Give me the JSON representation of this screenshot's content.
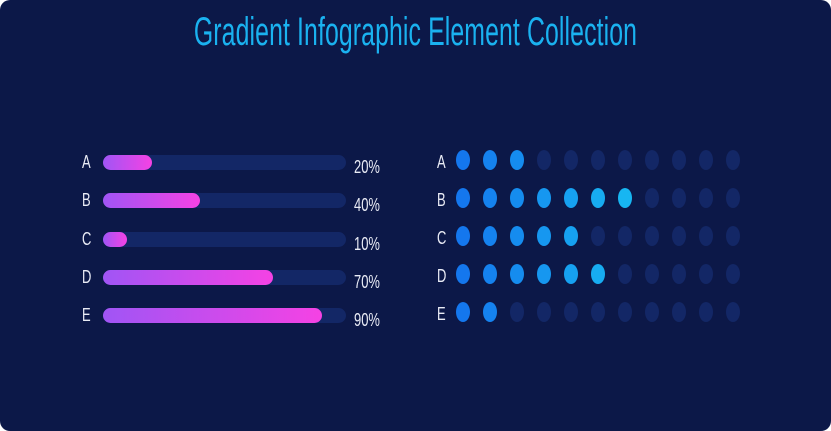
{
  "title": "Gradient Infographic Element Collection",
  "colors": {
    "background": "#0c1848",
    "title": "#1ab2f0",
    "bar_track": "#132766",
    "bar_gradient_start": "#a055f5",
    "bar_gradient_end": "#f542e4",
    "dot_active_start": "#1477ee",
    "dot_active_end": "#17b6f2",
    "dot_inactive": "#132766",
    "text": "#e9ebf5"
  },
  "chart_data": [
    {
      "type": "bar",
      "orientation": "horizontal",
      "categories": [
        "A",
        "B",
        "C",
        "D",
        "E"
      ],
      "values": [
        20,
        40,
        10,
        70,
        90
      ],
      "value_labels": [
        "20%",
        "40%",
        "10%",
        "70%",
        "90%"
      ],
      "xlim": [
        0,
        100
      ]
    },
    {
      "type": "dot-matrix",
      "categories": [
        "A",
        "B",
        "C",
        "D",
        "E"
      ],
      "values": [
        3,
        7,
        5,
        6,
        2
      ],
      "total_dots": 11
    }
  ]
}
